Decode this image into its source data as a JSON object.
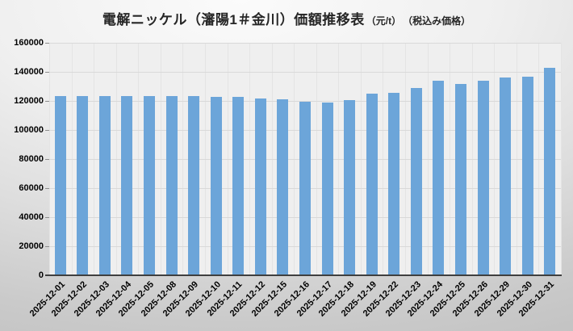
{
  "title": {
    "main": "電解ニッケル（瀋陽1＃金川）価額推移表",
    "unit": "（元/t）",
    "note": "（税込み価格）"
  },
  "chart_data": {
    "type": "bar",
    "title": "電解ニッケル（瀋陽1＃金川）価額推移表（元/t）（税込み価格）",
    "categories": [
      "2025-12-01",
      "2025-12-02",
      "2025-12-03",
      "2025-12-04",
      "2025-12-05",
      "2025-12-08",
      "2025-12-09",
      "2025-12-10",
      "2025-12-11",
      "2025-12-12",
      "2025-12-15",
      "2025-12-16",
      "2025-12-17",
      "2025-12-18",
      "2025-12-19",
      "2025-12-22",
      "2025-12-23",
      "2025-12-24",
      "2025-12-25",
      "2025-12-26",
      "2025-12-29",
      "2025-12-30",
      "2025-12-31"
    ],
    "values": [
      123300,
      123100,
      123300,
      123300,
      123400,
      123300,
      123500,
      122900,
      122700,
      121800,
      121200,
      119200,
      118800,
      120300,
      124900,
      125800,
      128700,
      134000,
      131400,
      133800,
      136100,
      136800,
      142800
    ],
    "xlabel": "",
    "ylabel": "",
    "ylim": [
      0,
      160000
    ],
    "yticks": [
      0,
      20000,
      40000,
      60000,
      80000,
      100000,
      120000,
      140000,
      160000
    ],
    "grid": true,
    "legend": false,
    "bar_color": "#6CA5D9",
    "plot_bg": "#EFEFEF",
    "grid_color": "#D9D9D9",
    "vgrid_color": "#E4E4E4",
    "tick_color": "#8C8C8C",
    "axis_color": "#3F3F3F"
  }
}
